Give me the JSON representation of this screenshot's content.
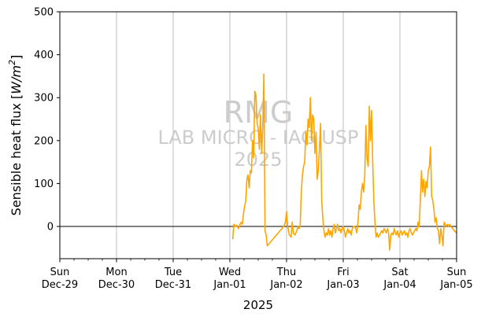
{
  "chart_data": {
    "type": "line",
    "title": "",
    "xlabel": "2025",
    "ylabel": "Sensible heat flux [W/m²]",
    "ylabel_parts": {
      "text": "Sensible heat flux [",
      "unit_base": "W/m",
      "unit_exp": "2",
      "close": "]"
    },
    "ylim": [
      -75,
      500
    ],
    "yticks": [
      0,
      100,
      200,
      300,
      400,
      500
    ],
    "xlim": [
      0,
      7
    ],
    "x_unit": "days after 2024-12-29 00:00",
    "xticks": [
      {
        "x": 0,
        "day": "Sun",
        "date": "Dec-29"
      },
      {
        "x": 1,
        "day": "Mon",
        "date": "Dec-30"
      },
      {
        "x": 2,
        "day": "Tue",
        "date": "Dec-31"
      },
      {
        "x": 3,
        "day": "Wed",
        "date": "Jan-01"
      },
      {
        "x": 4,
        "day": "Thu",
        "date": "Jan-02"
      },
      {
        "x": 5,
        "day": "Fri",
        "date": "Jan-03"
      },
      {
        "x": 6,
        "day": "Sat",
        "date": "Jan-04"
      },
      {
        "x": 7,
        "day": "Sun",
        "date": "Jan-05"
      }
    ],
    "grid": "vertical",
    "zero_line": true,
    "watermark": [
      "RMG",
      "LAB MICRO - IAG USP",
      "2025"
    ],
    "series": [
      {
        "name": "",
        "color": "#FFA500",
        "points": [
          [
            3.05,
            -30
          ],
          [
            3.07,
            5
          ],
          [
            3.1,
            0
          ],
          [
            3.12,
            3
          ],
          [
            3.15,
            -5
          ],
          [
            3.18,
            5
          ],
          [
            3.2,
            10
          ],
          [
            3.22,
            5
          ],
          [
            3.25,
            40
          ],
          [
            3.28,
            60
          ],
          [
            3.3,
            110
          ],
          [
            3.32,
            120
          ],
          [
            3.34,
            90
          ],
          [
            3.36,
            130
          ],
          [
            3.38,
            125
          ],
          [
            3.4,
            200
          ],
          [
            3.42,
            160
          ],
          [
            3.44,
            315
          ],
          [
            3.46,
            305
          ],
          [
            3.48,
            240
          ],
          [
            3.5,
            230
          ],
          [
            3.52,
            180
          ],
          [
            3.54,
            260
          ],
          [
            3.56,
            170
          ],
          [
            3.58,
            230
          ],
          [
            3.6,
            355
          ],
          [
            3.62,
            -10
          ],
          [
            3.64,
            -20
          ],
          [
            3.66,
            -45
          ],
          [
            3.95,
            0
          ],
          [
            3.98,
            10
          ],
          [
            4.0,
            35
          ],
          [
            4.02,
            0
          ],
          [
            4.05,
            -20
          ],
          [
            4.08,
            -25
          ],
          [
            4.1,
            10
          ],
          [
            4.12,
            -15
          ],
          [
            4.15,
            -20
          ],
          [
            4.18,
            -10
          ],
          [
            4.2,
            0
          ],
          [
            4.22,
            -5
          ],
          [
            4.24,
            0
          ],
          [
            4.26,
            80
          ],
          [
            4.28,
            120
          ],
          [
            4.3,
            140
          ],
          [
            4.32,
            150
          ],
          [
            4.34,
            220
          ],
          [
            4.36,
            190
          ],
          [
            4.38,
            250
          ],
          [
            4.4,
            230
          ],
          [
            4.42,
            300
          ],
          [
            4.44,
            200
          ],
          [
            4.46,
            260
          ],
          [
            4.48,
            250
          ],
          [
            4.5,
            170
          ],
          [
            4.52,
            220
          ],
          [
            4.54,
            110
          ],
          [
            4.56,
            130
          ],
          [
            4.58,
            180
          ],
          [
            4.6,
            240
          ],
          [
            4.62,
            60
          ],
          [
            4.64,
            20
          ],
          [
            4.66,
            -10
          ],
          [
            4.68,
            -25
          ],
          [
            4.7,
            -15
          ],
          [
            4.72,
            -20
          ],
          [
            4.74,
            -5
          ],
          [
            4.76,
            -20
          ],
          [
            4.78,
            -10
          ],
          [
            4.8,
            -25
          ],
          [
            4.82,
            -5
          ],
          [
            4.84,
            5
          ],
          [
            4.86,
            -15
          ],
          [
            4.88,
            -5
          ],
          [
            4.9,
            5
          ],
          [
            4.92,
            -10
          ],
          [
            4.94,
            -5
          ],
          [
            4.96,
            -15
          ],
          [
            4.98,
            -5
          ],
          [
            5.0,
            0
          ],
          [
            5.02,
            -10
          ],
          [
            5.04,
            -25
          ],
          [
            5.06,
            -15
          ],
          [
            5.08,
            -5
          ],
          [
            5.1,
            -15
          ],
          [
            5.12,
            -10
          ],
          [
            5.14,
            -20
          ],
          [
            5.16,
            -5
          ],
          [
            5.18,
            0
          ],
          [
            5.2,
            0
          ],
          [
            5.22,
            -5
          ],
          [
            5.24,
            -15
          ],
          [
            5.26,
            10
          ],
          [
            5.28,
            50
          ],
          [
            5.3,
            40
          ],
          [
            5.32,
            80
          ],
          [
            5.34,
            100
          ],
          [
            5.36,
            80
          ],
          [
            5.38,
            120
          ],
          [
            5.4,
            235
          ],
          [
            5.42,
            160
          ],
          [
            5.44,
            140
          ],
          [
            5.46,
            280
          ],
          [
            5.48,
            200
          ],
          [
            5.5,
            270
          ],
          [
            5.52,
            150
          ],
          [
            5.54,
            60
          ],
          [
            5.56,
            10
          ],
          [
            5.58,
            -25
          ],
          [
            5.6,
            -15
          ],
          [
            5.62,
            -25
          ],
          [
            5.64,
            -20
          ],
          [
            5.66,
            -15
          ],
          [
            5.68,
            -10
          ],
          [
            5.7,
            -15
          ],
          [
            5.72,
            -5
          ],
          [
            5.74,
            -10
          ],
          [
            5.76,
            -15
          ],
          [
            5.78,
            -5
          ],
          [
            5.8,
            -15
          ],
          [
            5.82,
            -55
          ],
          [
            5.84,
            -20
          ],
          [
            5.86,
            -15
          ],
          [
            5.88,
            -20
          ],
          [
            5.9,
            -5
          ],
          [
            5.92,
            -15
          ],
          [
            5.94,
            -20
          ],
          [
            5.96,
            -10
          ],
          [
            5.98,
            -25
          ],
          [
            6.0,
            -15
          ],
          [
            6.02,
            -10
          ],
          [
            6.04,
            -20
          ],
          [
            6.06,
            -15
          ],
          [
            6.08,
            -10
          ],
          [
            6.1,
            -20
          ],
          [
            6.12,
            -15
          ],
          [
            6.14,
            -25
          ],
          [
            6.16,
            -10
          ],
          [
            6.18,
            -5
          ],
          [
            6.2,
            -15
          ],
          [
            6.22,
            -20
          ],
          [
            6.24,
            -15
          ],
          [
            6.26,
            -10
          ],
          [
            6.28,
            -5
          ],
          [
            6.3,
            -10
          ],
          [
            6.32,
            10
          ],
          [
            6.34,
            0
          ],
          [
            6.36,
            60
          ],
          [
            6.38,
            130
          ],
          [
            6.4,
            80
          ],
          [
            6.42,
            110
          ],
          [
            6.44,
            70
          ],
          [
            6.46,
            105
          ],
          [
            6.48,
            90
          ],
          [
            6.5,
            130
          ],
          [
            6.52,
            140
          ],
          [
            6.54,
            185
          ],
          [
            6.56,
            70
          ],
          [
            6.58,
            60
          ],
          [
            6.6,
            40
          ],
          [
            6.62,
            10
          ],
          [
            6.64,
            20
          ],
          [
            6.66,
            -5
          ],
          [
            6.68,
            -10
          ],
          [
            6.7,
            -40
          ],
          [
            6.72,
            -5
          ],
          [
            6.74,
            -20
          ],
          [
            6.76,
            -45
          ],
          [
            6.78,
            10
          ],
          [
            6.8,
            5
          ],
          [
            6.82,
            0
          ],
          [
            6.84,
            5
          ],
          [
            6.86,
            0
          ],
          [
            6.88,
            5
          ],
          [
            6.9,
            0
          ],
          [
            6.93,
            -5
          ],
          [
            6.96,
            -10
          ],
          [
            7.0,
            -15
          ]
        ]
      }
    ]
  }
}
